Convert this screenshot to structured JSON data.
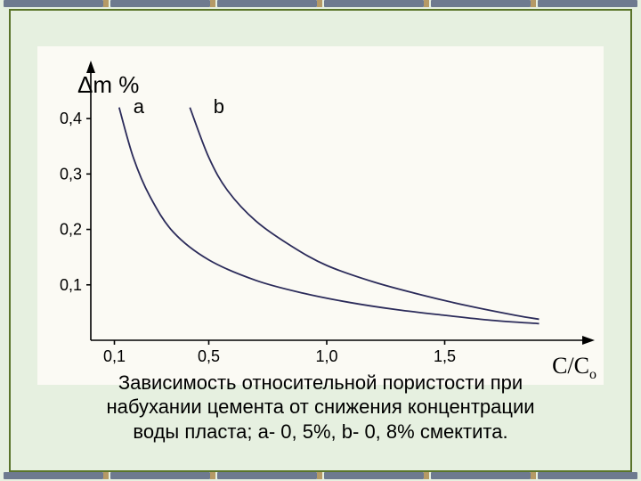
{
  "border_color": "#5a742a",
  "background_color": "#e6f0e0",
  "chart_bg": "#fbfaf4",
  "dash_color_main": "#6e7a8f",
  "dash_color_accent": "#b59a66",
  "y_axis_label": "Δm %",
  "x_axis_label_main": "С/С",
  "x_axis_label_sub": "о",
  "caption_line1": "Зависимость относительной пористости при",
  "caption_line2": "набухании цемента от снижения концентрации",
  "caption_line3": "воды пласта; а- 0, 5%, b- 0, 8% смектита.",
  "chart": {
    "type": "line",
    "xlim": [
      0,
      2.0
    ],
    "ylim": [
      0,
      0.45
    ],
    "xticks": [
      0.1,
      0.5,
      1.0,
      1.5
    ],
    "xtick_labels": [
      "0,1",
      "0,5",
      "1,0",
      "1,5"
    ],
    "yticks": [
      0.1,
      0.2,
      0.3,
      0.4
    ],
    "ytick_labels": [
      "0,1",
      "0,2",
      "0,3",
      "0,4"
    ],
    "curve_color": "#2b2b5a",
    "curve_width": 1.8,
    "tick_fontsize": 18,
    "label_fontsize": 22,
    "series": [
      {
        "label": "а",
        "label_pos": {
          "x": 0.18,
          "y": 0.41
        },
        "data": [
          {
            "x": 0.12,
            "y": 0.42
          },
          {
            "x": 0.18,
            "y": 0.33
          },
          {
            "x": 0.25,
            "y": 0.26
          },
          {
            "x": 0.35,
            "y": 0.195
          },
          {
            "x": 0.5,
            "y": 0.145
          },
          {
            "x": 0.7,
            "y": 0.108
          },
          {
            "x": 0.9,
            "y": 0.085
          },
          {
            "x": 1.1,
            "y": 0.068
          },
          {
            "x": 1.3,
            "y": 0.055
          },
          {
            "x": 1.5,
            "y": 0.045
          },
          {
            "x": 1.7,
            "y": 0.036
          },
          {
            "x": 1.9,
            "y": 0.03
          }
        ]
      },
      {
        "label": "b",
        "label_pos": {
          "x": 0.52,
          "y": 0.41
        },
        "data": [
          {
            "x": 0.42,
            "y": 0.42
          },
          {
            "x": 0.5,
            "y": 0.33
          },
          {
            "x": 0.58,
            "y": 0.27
          },
          {
            "x": 0.7,
            "y": 0.215
          },
          {
            "x": 0.85,
            "y": 0.17
          },
          {
            "x": 1.0,
            "y": 0.135
          },
          {
            "x": 1.2,
            "y": 0.105
          },
          {
            "x": 1.4,
            "y": 0.082
          },
          {
            "x": 1.6,
            "y": 0.062
          },
          {
            "x": 1.8,
            "y": 0.045
          },
          {
            "x": 1.9,
            "y": 0.038
          }
        ]
      }
    ]
  }
}
